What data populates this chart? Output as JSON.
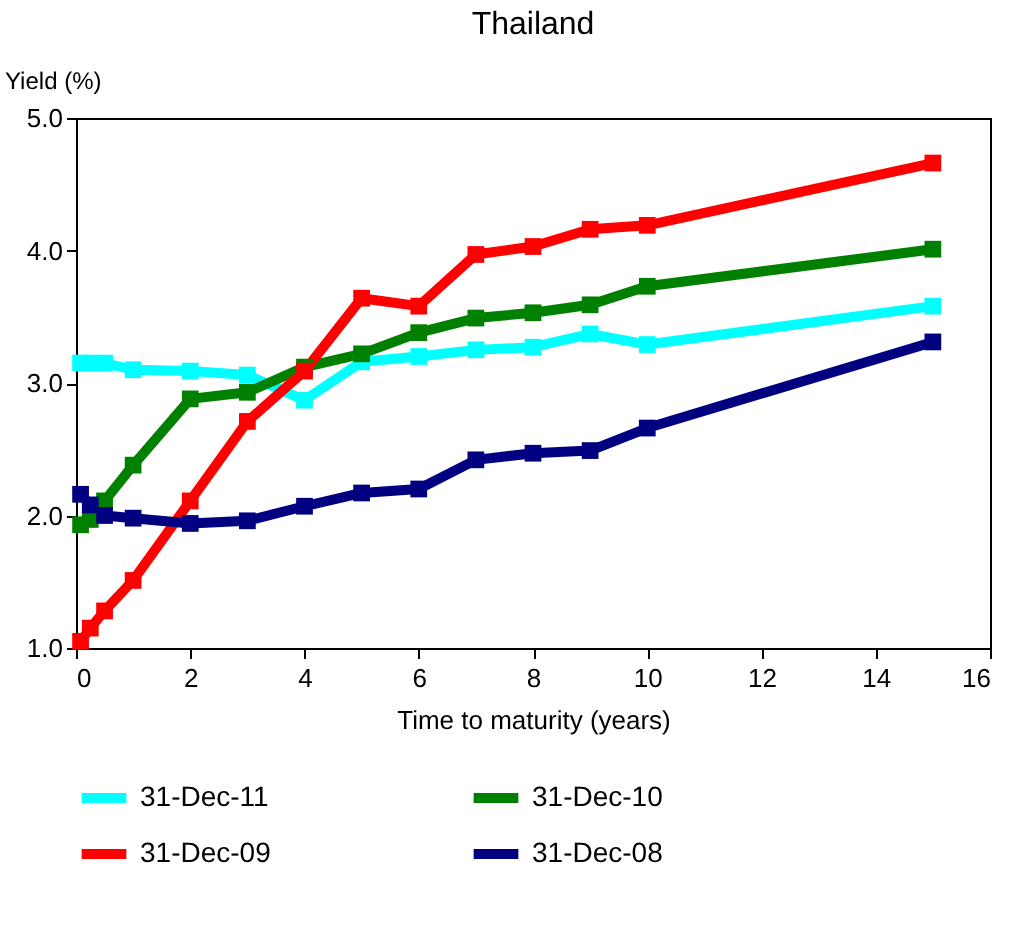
{
  "chart_data": {
    "type": "line",
    "title": "Thailand",
    "xlabel": "Time to maturity (years)",
    "ylabel": "Yield (%)",
    "x": [
      0.08,
      0.25,
      0.5,
      1,
      2,
      3,
      4,
      5,
      6,
      7,
      8,
      9,
      10,
      15
    ],
    "series": [
      {
        "name": "31-Dec-11",
        "color": "#00ffff",
        "values": [
          3.15,
          3.15,
          3.15,
          3.1,
          3.09,
          3.06,
          2.87,
          3.16,
          3.2,
          3.25,
          3.27,
          3.37,
          3.29,
          3.58
        ]
      },
      {
        "name": "31-Dec-10",
        "color": "#008000",
        "values": [
          1.93,
          1.97,
          2.11,
          2.38,
          2.88,
          2.93,
          3.12,
          3.22,
          3.38,
          3.49,
          3.53,
          3.59,
          3.73,
          4.01
        ]
      },
      {
        "name": "31-Dec-09",
        "color": "#ff0000",
        "values": [
          1.05,
          1.15,
          1.28,
          1.51,
          2.11,
          2.71,
          3.09,
          3.64,
          3.58,
          3.97,
          4.03,
          4.16,
          4.19,
          4.66
        ]
      },
      {
        "name": "31-Dec-08",
        "color": "#000080",
        "values": [
          2.16,
          2.08,
          2.0,
          1.98,
          1.94,
          1.96,
          2.07,
          2.17,
          2.2,
          2.42,
          2.47,
          2.49,
          2.66,
          3.31
        ]
      }
    ],
    "xlim": [
      0,
      16
    ],
    "xticks": [
      0,
      2,
      4,
      6,
      8,
      10,
      12,
      14,
      16
    ],
    "ylim": [
      1,
      5
    ],
    "yticks": [
      {
        "value": 1,
        "label": "1.0"
      },
      {
        "value": 2,
        "label": "2.0"
      },
      {
        "value": 3,
        "label": "3.0"
      },
      {
        "value": 4,
        "label": "4.0"
      },
      {
        "value": 5,
        "label": "5.0"
      }
    ],
    "marker": "square",
    "legend": "bottom"
  }
}
